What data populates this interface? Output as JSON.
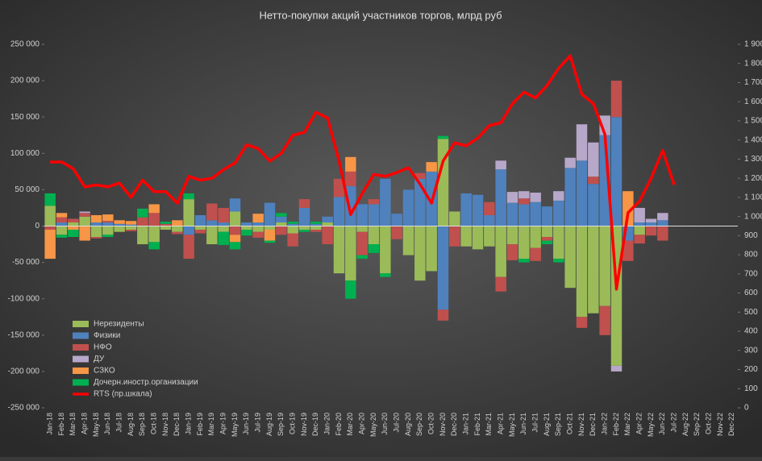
{
  "chart_data": {
    "type": "stacked-bar-line",
    "title": "Нетто-покупки  акций  участников  торгов,  млрд руб",
    "categories": [
      "Jan-18",
      "Feb-18",
      "Mar-18",
      "Apr-18",
      "May-18",
      "Jun-18",
      "Jul-18",
      "Aug-18",
      "Sep-18",
      "Oct-18",
      "Nov-18",
      "Dec-18",
      "Jan-19",
      "Feb-19",
      "Mar-19",
      "Apr-19",
      "May-19",
      "Jun-19",
      "Jul-19",
      "Aug-19",
      "Sep-19",
      "Oct-19",
      "Nov-19",
      "Dec-19",
      "Jan-20",
      "Feb-20",
      "Mar-20",
      "Apr-20",
      "May-20",
      "Jun-20",
      "Jul-20",
      "Aug-20",
      "Sep-20",
      "Oct-20",
      "Nov-20",
      "Dec-20",
      "Jan-21",
      "Feb-21",
      "Mar-21",
      "Apr-21",
      "May-21",
      "Jun-21",
      "Jul-21",
      "Aug-21",
      "Sep-21",
      "Oct-21",
      "Nov-21",
      "Dec-21",
      "Jan-22",
      "Feb-22",
      "Mar-22",
      "Apr-22",
      "May-22",
      "Jun-22",
      "Jul-22",
      "Aug-22",
      "Sep-22",
      "Oct-22",
      "Nov-22",
      "Dec-22"
    ],
    "series": [
      {
        "name": "Нерезиденты",
        "color": "#9bbb59",
        "values": [
          28000,
          -12000,
          5000,
          13000,
          -15000,
          -12000,
          -8000,
          -5000,
          -25000,
          -22000,
          -5000,
          -8000,
          37000,
          -5000,
          -25000,
          -8000,
          20000,
          -5000,
          -8000,
          -5000,
          5000,
          -10000,
          -5000,
          -5000,
          5000,
          -65000,
          -75000,
          -8000,
          -25000,
          -65000,
          0,
          -40000,
          -75000,
          -62000,
          120000,
          20000,
          -28000,
          -32000,
          -28000,
          -70000,
          -25000,
          -45000,
          -30000,
          -15000,
          -45000,
          -85000,
          -125000,
          -120000,
          -110000,
          -192000,
          0,
          -12000,
          0,
          0,
          null,
          null,
          null,
          null,
          null,
          null
        ]
      },
      {
        "name": "Физики",
        "color": "#4f81bd",
        "values": [
          0,
          5000,
          0,
          0,
          5000,
          5000,
          3000,
          2000,
          0,
          0,
          0,
          0,
          -12000,
          15000,
          8000,
          5000,
          18000,
          5000,
          5000,
          32000,
          8000,
          3000,
          25000,
          3000,
          8000,
          40000,
          55000,
          30000,
          30000,
          65000,
          17000,
          50000,
          65000,
          75000,
          -115000,
          0,
          45000,
          43000,
          15000,
          78000,
          32000,
          30000,
          33000,
          27000,
          35000,
          80000,
          90000,
          58000,
          125000,
          150000,
          -20000,
          5000,
          5000,
          8000,
          null,
          null,
          null,
          null,
          null,
          null
        ]
      },
      {
        "name": "НФО",
        "color": "#c0504d",
        "values": [
          -5000,
          7000,
          5000,
          5000,
          -2000,
          2000,
          0,
          -2000,
          12000,
          18000,
          3000,
          -3000,
          -33000,
          -5000,
          23000,
          20000,
          -12000,
          0,
          -8000,
          0,
          -12000,
          -18000,
          12000,
          -3000,
          -25000,
          25000,
          20000,
          -32000,
          7000,
          0,
          -18000,
          0,
          8000,
          0,
          -15000,
          -28000,
          0,
          0,
          18000,
          -20000,
          -22000,
          8000,
          -18000,
          -5000,
          0,
          0,
          -15000,
          10000,
          -40000,
          50000,
          -28000,
          -12000,
          -13000,
          -20000,
          null,
          null,
          null,
          null,
          null,
          null
        ]
      },
      {
        "name": "ДУ",
        "color": "#b7a7c9",
        "values": [
          0,
          0,
          0,
          2000,
          0,
          0,
          0,
          0,
          0,
          0,
          0,
          0,
          0,
          0,
          0,
          0,
          0,
          0,
          0,
          0,
          0,
          0,
          0,
          0,
          0,
          0,
          0,
          0,
          0,
          0,
          0,
          0,
          0,
          0,
          0,
          0,
          0,
          0,
          0,
          12000,
          15000,
          10000,
          13000,
          0,
          13000,
          14000,
          50000,
          47000,
          27000,
          -8000,
          0,
          20000,
          5000,
          10000,
          null,
          null,
          null,
          null,
          null,
          null
        ]
      },
      {
        "name": "СЗКО",
        "color": "#f79646",
        "values": [
          -40000,
          6000,
          -5000,
          -20000,
          10000,
          9000,
          5000,
          5000,
          0,
          12000,
          0,
          8000,
          0,
          0,
          0,
          0,
          -10000,
          0,
          12000,
          -15000,
          0,
          0,
          0,
          0,
          0,
          0,
          20000,
          0,
          0,
          0,
          0,
          0,
          0,
          13000,
          0,
          0,
          0,
          0,
          0,
          0,
          0,
          0,
          0,
          0,
          0,
          0,
          0,
          0,
          0,
          0,
          48000,
          0,
          0,
          0,
          null,
          null,
          null,
          null,
          null,
          null
        ]
      },
      {
        "name": "Дочерн.иностр.организации",
        "color": "#00b050",
        "values": [
          17000,
          -4000,
          -10000,
          0,
          0,
          -3000,
          0,
          0,
          12000,
          -10000,
          3000,
          0,
          8000,
          0,
          0,
          -18000,
          -10000,
          -8000,
          0,
          -3000,
          5000,
          3000,
          -3000,
          3000,
          0,
          0,
          -25000,
          -5000,
          -12000,
          -5000,
          0,
          0,
          0,
          0,
          4000,
          0,
          0,
          0,
          0,
          0,
          0,
          -5000,
          0,
          -5000,
          -5000,
          0,
          0,
          0,
          0,
          0,
          0,
          0,
          0,
          0,
          null,
          null,
          null,
          null,
          null,
          null
        ]
      },
      {
        "name": "RTS (пр.шкала)",
        "color": "#ff0000",
        "axis": "y2",
        "values": [
          1285,
          1285,
          1250,
          1155,
          1165,
          1155,
          1175,
          1100,
          1190,
          1130,
          1130,
          1070,
          1210,
          1190,
          1200,
          1245,
          1280,
          1375,
          1355,
          1290,
          1330,
          1425,
          1440,
          1545,
          1515,
          1290,
          1010,
          1120,
          1220,
          1210,
          1230,
          1255,
          1170,
          1070,
          1290,
          1385,
          1370,
          1410,
          1475,
          1490,
          1590,
          1650,
          1620,
          1685,
          1775,
          1840,
          1640,
          1590,
          1430,
          620,
          1020,
          1080,
          1200,
          1345,
          1165,
          null,
          null,
          null,
          null,
          null
        ]
      }
    ],
    "ylim": [
      -250000,
      250000
    ],
    "yticks": [
      {
        "value": -250000,
        "label": "-250 000"
      },
      {
        "value": -200000,
        "label": "-200 000"
      },
      {
        "value": -150000,
        "label": "-150 000"
      },
      {
        "value": -100000,
        "label": "-100 000"
      },
      {
        "value": -50000,
        "label": "-50 000"
      },
      0,
      {
        "value": 50000,
        "label": "50 000"
      },
      {
        "value": 100000,
        "label": "100 000"
      },
      {
        "value": 150000,
        "label": "150 000"
      },
      {
        "value": 200000,
        "label": "200 000"
      },
      {
        "value": 250000,
        "label": "250 000"
      }
    ],
    "y2lim": [
      0,
      1900
    ],
    "y2ticks": [
      0,
      100,
      200,
      300,
      400,
      500,
      600,
      700,
      800,
      900,
      {
        "value": 1000,
        "label": "1 000"
      },
      {
        "value": 1100,
        "label": "1 100"
      },
      {
        "value": 1200,
        "label": "1 200"
      },
      {
        "value": 1300,
        "label": "1 300"
      },
      {
        "value": 1400,
        "label": "1 400"
      },
      {
        "value": 1500,
        "label": "1 500"
      },
      {
        "value": 1600,
        "label": "1 600"
      },
      {
        "value": 1700,
        "label": "1 700"
      },
      {
        "value": 1800,
        "label": "1 800"
      },
      {
        "value": 1900,
        "label": "1 900"
      }
    ],
    "legend": "lower-left"
  }
}
